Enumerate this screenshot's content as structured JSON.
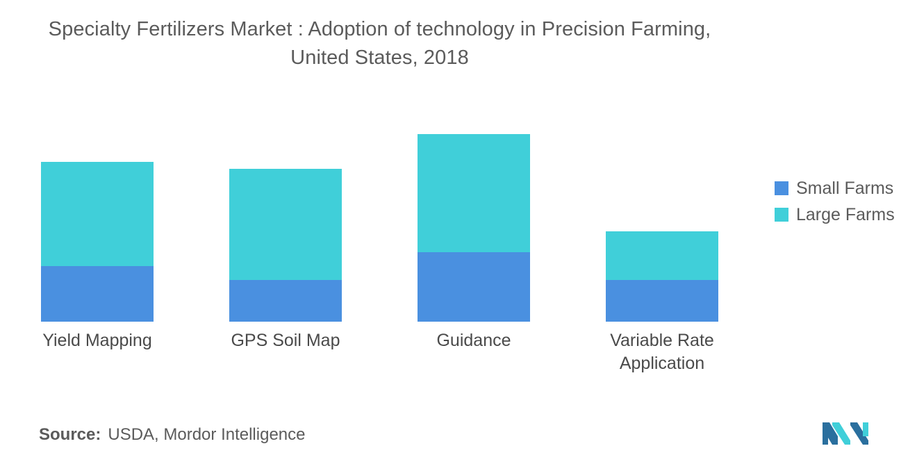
{
  "title_lines": [
    "Specialty Fertilizers Market : Adoption of technology in Precision Farming,",
    "United States, 2018"
  ],
  "source": {
    "label": "Source:",
    "text": "USDA, Mordor Intelligence"
  },
  "logo": {
    "name": "mordor-intelligence-logo",
    "color_dark": "#2a6f9e",
    "color_light": "#40cfd9"
  },
  "chart_data": {
    "type": "bar",
    "stacked": true,
    "title": "Specialty Fertilizers Market : Adoption of technology in Precision Farming, United States, 2018",
    "xlabel": "",
    "ylabel": "",
    "categories": [
      [
        "Yield Mapping"
      ],
      [
        "GPS Soil Map"
      ],
      [
        "Guidance"
      ],
      [
        "Variable Rate",
        "Application"
      ]
    ],
    "series": [
      {
        "name": "Small Farms",
        "color": "#4a90e0",
        "values": [
          16,
          12,
          20,
          12
        ]
      },
      {
        "name": "Large Farms",
        "color": "#40cfd9",
        "values": [
          30,
          32,
          34,
          14
        ]
      }
    ],
    "ylim": [
      0,
      60
    ],
    "grid": false,
    "legend_position": "right"
  }
}
